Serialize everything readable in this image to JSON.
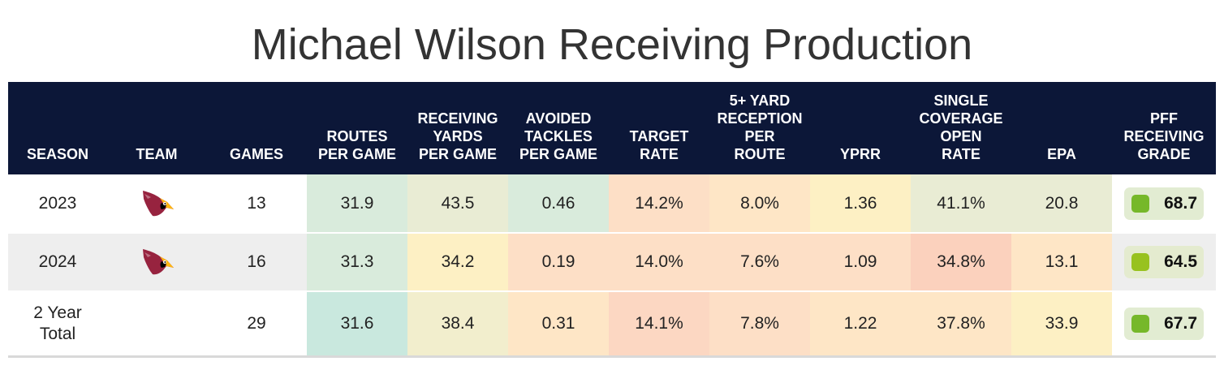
{
  "title": "Michael Wilson Receiving Production",
  "columns": [
    {
      "lines": [
        "SEASON"
      ]
    },
    {
      "lines": [
        "TEAM"
      ]
    },
    {
      "lines": [
        "GAMES"
      ]
    },
    {
      "lines": [
        "ROUTES",
        "PER GAME"
      ]
    },
    {
      "lines": [
        "RECEIVING",
        "YARDS",
        "PER GAME"
      ]
    },
    {
      "lines": [
        "AVOIDED",
        "TACKLES",
        "PER GAME"
      ]
    },
    {
      "lines": [
        "TARGET",
        "RATE"
      ]
    },
    {
      "lines": [
        "5+ YARD",
        "RECEPTION",
        "PER",
        "ROUTE"
      ]
    },
    {
      "lines": [
        "YPRR"
      ]
    },
    {
      "lines": [
        "SINGLE",
        "COVERAGE",
        "OPEN",
        "RATE"
      ]
    },
    {
      "lines": [
        "EPA"
      ]
    },
    {
      "lines": [
        "PFF",
        "RECEIVING",
        "GRADE"
      ]
    }
  ],
  "team_logo_icon": "arizona-cardinals-logo-icon",
  "rows": [
    {
      "season_lines": [
        "2023"
      ],
      "has_logo": true,
      "games": "13",
      "routes_per_game": {
        "value": "31.9",
        "color": "#d9ebdc"
      },
      "rec_yards_per_game": {
        "value": "43.5",
        "color": "#e9ecd4"
      },
      "avoided_tackles_per_game": {
        "value": "0.46",
        "color": "#d9ebdc"
      },
      "target_rate": {
        "value": "14.2%",
        "color": "#fddfc6"
      },
      "reception_5plus_per_route": {
        "value": "8.0%",
        "color": "#fee6c6"
      },
      "yprr": {
        "value": "1.36",
        "color": "#fdf0c4"
      },
      "single_cov_open_rate": {
        "value": "41.1%",
        "color": "#e9ecd4"
      },
      "epa": {
        "value": "20.8",
        "color": "#e9ecd4"
      },
      "grade": {
        "value": "68.7",
        "dot": "#76b82a",
        "pill": "#e2ecd2"
      }
    },
    {
      "season_lines": [
        "2024"
      ],
      "has_logo": true,
      "games": "16",
      "routes_per_game": {
        "value": "31.3",
        "color": "#d9ebdc"
      },
      "rec_yards_per_game": {
        "value": "34.2",
        "color": "#fdf0c4"
      },
      "avoided_tackles_per_game": {
        "value": "0.19",
        "color": "#fddfc6"
      },
      "target_rate": {
        "value": "14.0%",
        "color": "#fddfc6"
      },
      "reception_5plus_per_route": {
        "value": "7.6%",
        "color": "#fddfc6"
      },
      "yprr": {
        "value": "1.09",
        "color": "#fddfc6"
      },
      "single_cov_open_rate": {
        "value": "34.8%",
        "color": "#fbd1bd"
      },
      "epa": {
        "value": "13.1",
        "color": "#fee6c6"
      },
      "grade": {
        "value": "64.5",
        "dot": "#98c21f",
        "pill": "#e4ebcf"
      }
    },
    {
      "season_lines": [
        "2 Year",
        "Total"
      ],
      "has_logo": false,
      "games": "29",
      "routes_per_game": {
        "value": "31.6",
        "color": "#c9e8de"
      },
      "rec_yards_per_game": {
        "value": "38.4",
        "color": "#f2eecd"
      },
      "avoided_tackles_per_game": {
        "value": "0.31",
        "color": "#fee6c6"
      },
      "target_rate": {
        "value": "14.1%",
        "color": "#fcd7c2"
      },
      "reception_5plus_per_route": {
        "value": "7.8%",
        "color": "#fddfc6"
      },
      "yprr": {
        "value": "1.22",
        "color": "#fee6c6"
      },
      "single_cov_open_rate": {
        "value": "37.8%",
        "color": "#fee6c6"
      },
      "epa": {
        "value": "33.9",
        "color": "#fdf0c4"
      },
      "grade": {
        "value": "67.7",
        "dot": "#76b82a",
        "pill": "#e2ecd2"
      }
    }
  ]
}
